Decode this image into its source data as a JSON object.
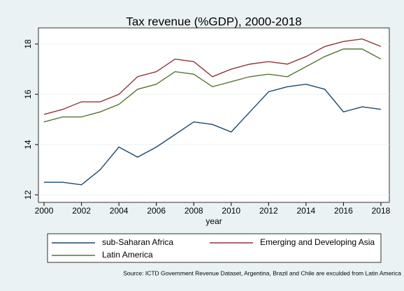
{
  "chart_data": {
    "type": "line",
    "title": "Tax revenue (%GDP), 2000-2018",
    "x_label": "year",
    "source": "Source: ICTD Government Revenue Dataset, Argentina, Brazil and Chile are exculded from Latin America",
    "x": [
      2000,
      2001,
      2002,
      2003,
      2004,
      2005,
      2006,
      2007,
      2008,
      2009,
      2010,
      2011,
      2012,
      2013,
      2014,
      2015,
      2016,
      2017,
      2018
    ],
    "series": [
      {
        "name": "sub-Saharan Africa",
        "color": "#1a476f",
        "values": [
          12.5,
          12.5,
          12.4,
          13.0,
          13.9,
          13.5,
          13.9,
          14.4,
          14.9,
          14.8,
          14.5,
          15.3,
          16.1,
          16.3,
          16.4,
          16.2,
          15.3,
          15.5,
          15.4
        ]
      },
      {
        "name": "Emerging and Developing Asia",
        "color": "#90353b",
        "values": [
          15.2,
          15.4,
          15.7,
          15.7,
          16.0,
          16.7,
          16.9,
          17.4,
          17.3,
          16.7,
          17.0,
          17.2,
          17.3,
          17.2,
          17.5,
          17.9,
          18.1,
          18.2,
          17.9
        ]
      },
      {
        "name": "Latin America",
        "color": "#55752f",
        "values": [
          14.9,
          15.1,
          15.1,
          15.3,
          15.6,
          16.2,
          16.4,
          16.9,
          16.8,
          16.3,
          16.5,
          16.7,
          16.8,
          16.7,
          17.1,
          17.5,
          17.8,
          17.8,
          17.4
        ]
      }
    ],
    "xlim": [
      1999.7,
      2018.45
    ],
    "xticks": [
      2000,
      2002,
      2004,
      2006,
      2008,
      2010,
      2012,
      2014,
      2016,
      2018
    ],
    "ylim": [
      11.7,
      18.64
    ],
    "yticks": [
      12,
      14,
      16,
      18
    ],
    "grid": true
  }
}
